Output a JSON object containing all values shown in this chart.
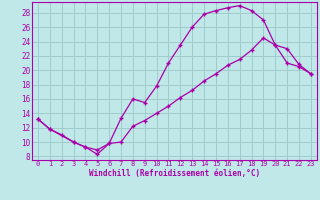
{
  "xlabel": "Windchill (Refroidissement éolien,°C)",
  "bg_color": "#c0e8e8",
  "grid_color": "#a0cccc",
  "line_color": "#aa00aa",
  "xlim": [
    -0.5,
    23.5
  ],
  "ylim": [
    7.5,
    29.5
  ],
  "yticks": [
    8,
    10,
    12,
    14,
    16,
    18,
    20,
    22,
    24,
    26,
    28
  ],
  "xticks": [
    0,
    1,
    2,
    3,
    4,
    5,
    6,
    7,
    8,
    9,
    10,
    11,
    12,
    13,
    14,
    15,
    16,
    17,
    18,
    19,
    20,
    21,
    22,
    23
  ],
  "line1_x": [
    0,
    1,
    2,
    3,
    4,
    5,
    6,
    7,
    8,
    9,
    10,
    11,
    12,
    13,
    14,
    15,
    16,
    17,
    18,
    19,
    20,
    21,
    22,
    23
  ],
  "line1_y": [
    13.2,
    11.8,
    11.0,
    10.0,
    9.3,
    8.3,
    9.8,
    13.3,
    16.0,
    15.5,
    17.8,
    21.0,
    23.5,
    26.0,
    27.8,
    28.3,
    28.7,
    29.0,
    28.3,
    27.0,
    23.5,
    21.0,
    20.5,
    19.5
  ],
  "line2_x": [
    0,
    1,
    3,
    4,
    5,
    6,
    7,
    8,
    9,
    10,
    11,
    12,
    13,
    14,
    15,
    16,
    17,
    18,
    19,
    20,
    21,
    22,
    23
  ],
  "line2_y": [
    13.2,
    11.8,
    10.0,
    9.3,
    8.9,
    9.8,
    10.0,
    12.2,
    13.0,
    14.0,
    15.0,
    16.2,
    17.2,
    18.5,
    19.5,
    20.7,
    21.5,
    22.8,
    24.5,
    23.5,
    23.0,
    20.8,
    19.5
  ]
}
